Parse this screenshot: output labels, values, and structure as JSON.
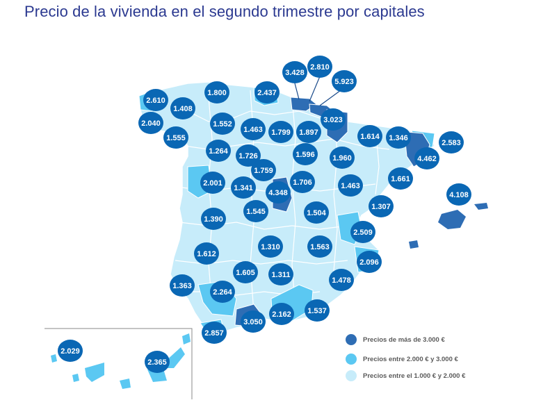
{
  "title": "Precio de la vivienda en el segundo trimestre por capitales",
  "colors": {
    "high": "#2e6db4",
    "medium": "#5bc8f2",
    "low": "#c7ecfa",
    "badge": "#0a67b4",
    "title": "#2b3990",
    "legend_text": "#5a5a5a"
  },
  "legend": [
    {
      "label": "Precios de más de 3.000 €",
      "color": "#2e6db4"
    },
    {
      "label": "Precios entre 2.000 € y 3.000 €",
      "color": "#5bc8f2"
    },
    {
      "label": "Precios entre el 1.000 € y 2.000 €",
      "color": "#c7ecfa"
    }
  ],
  "prices": [
    "3.428",
    "2.810",
    "5.923",
    "2.610",
    "1.800",
    "2.437",
    "1.408",
    "3.023",
    "2.040",
    "1.552",
    "1.463",
    "1.799",
    "1.897",
    "1.614",
    "1.346",
    "2.583",
    "1.555",
    "1.264",
    "1.726",
    "1.596",
    "1.960",
    "4.462",
    "1.759",
    "2.001",
    "1.341",
    "4.348",
    "1.706",
    "1.463",
    "1.661",
    "4.108",
    "1.545",
    "1.504",
    "1.307",
    "1.390",
    "2.509",
    "1.310",
    "1.563",
    "1.612",
    "2.096",
    "1.605",
    "1.311",
    "1.478",
    "1.363",
    "2.264",
    "2.162",
    "1.537",
    "3.050",
    "2.857",
    "2.029",
    "2.365"
  ]
}
